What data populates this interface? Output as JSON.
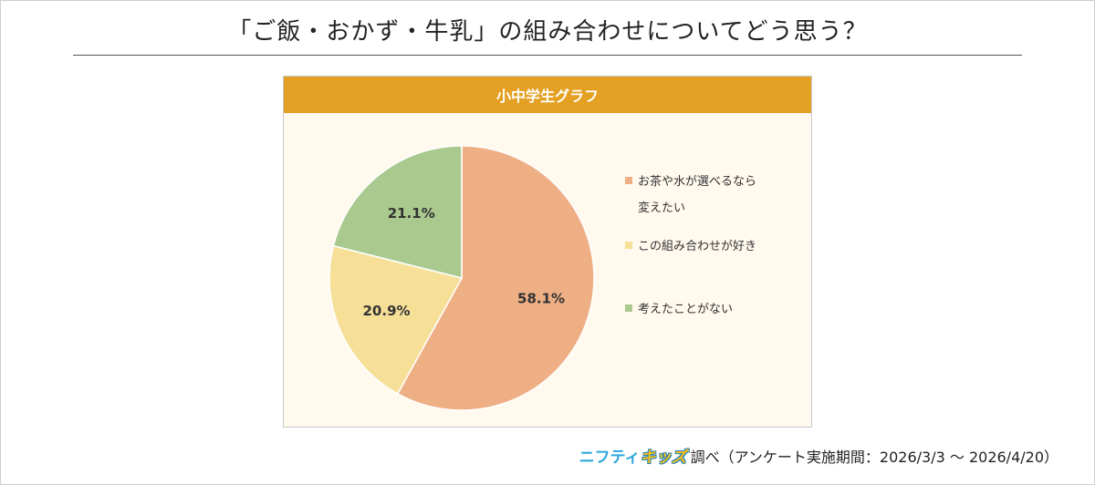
{
  "page": {
    "title": "「ご飯・おかず・牛乳」の組み合わせについてどう思う？",
    "source_brand_a": "ニフティ",
    "source_brand_b": "キッズ",
    "source_text": "調べ（アンケート実施期間：2026/3/3 ～ 2026/4/20）"
  },
  "chart_data": {
    "type": "pie",
    "title": "小中学生グラフ",
    "slices": [
      {
        "label": "お茶や水が選べるなら変えたい",
        "label_lines": [
          "お茶や水が選べるなら",
          "変えたい"
        ],
        "value": 58.1,
        "display": "58.1%",
        "color": "#eeaf85"
      },
      {
        "label": "この組み合わせが好き",
        "label_lines": [
          "この組み合わせが好き"
        ],
        "value": 20.9,
        "display": "20.9%",
        "color": "#f6df97"
      },
      {
        "label": "考えたことがない",
        "label_lines": [
          "考えたことがない"
        ],
        "value": 21.1,
        "display": "21.1%",
        "color": "#a9c98e"
      }
    ],
    "legend_position": "right",
    "start": "top",
    "direction": "clockwise"
  }
}
